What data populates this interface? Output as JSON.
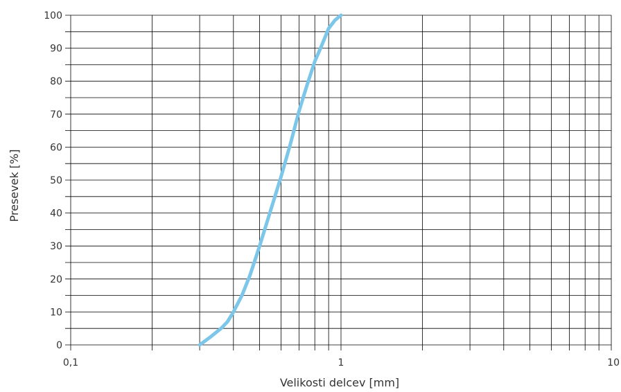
{
  "chart_data": {
    "type": "line",
    "title": "",
    "xlabel": "Velikosti delcev [mm]",
    "ylabel": "Presevek [%]",
    "xscale": "log",
    "xlim": [
      0.1,
      10
    ],
    "ylim": [
      0,
      100
    ],
    "grid": true,
    "x_ticks": [
      0.1,
      1,
      10
    ],
    "x_tick_labels": [
      "0,1",
      "1",
      "10"
    ],
    "y_ticks": [
      0,
      10,
      20,
      30,
      40,
      50,
      60,
      70,
      80,
      90,
      100
    ],
    "y_tick_labels": [
      "0",
      "10",
      "20",
      "30",
      "40",
      "50",
      "60",
      "70",
      "80",
      "90",
      "100"
    ],
    "series": [
      {
        "color": "#7cc6ea",
        "x": [
          0.3,
          0.33,
          0.36,
          0.38,
          0.4,
          0.43,
          0.46,
          0.5,
          0.55,
          0.6,
          0.65,
          0.7,
          0.75,
          0.8,
          0.85,
          0.9,
          0.95,
          1.0
        ],
        "y": [
          0,
          2.5,
          5,
          7,
          10,
          15,
          21,
          30,
          41,
          51,
          61,
          71,
          79,
          86,
          91,
          96,
          98.5,
          100
        ]
      }
    ]
  },
  "colors": {
    "grid": "#000000",
    "curve": "#7cc6ea",
    "text": "#333333"
  }
}
